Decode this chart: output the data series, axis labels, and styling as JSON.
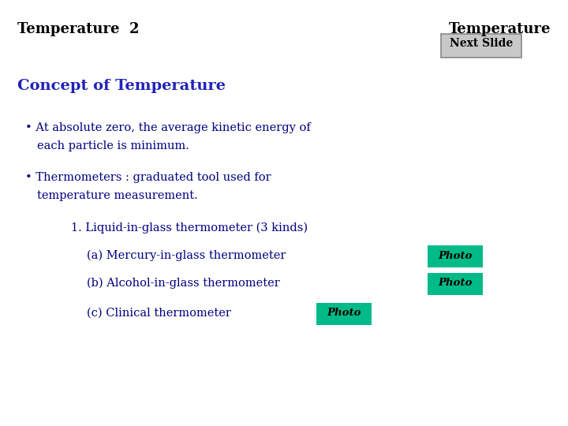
{
  "bg_color": "#ffffff",
  "title_left": "Temperature  2",
  "title_right": "Temperature",
  "title_color": "#000000",
  "title_fontsize": 13,
  "next_slide_text": "Next Slide",
  "next_slide_box_color": "#c8c8c8",
  "next_slide_border_color": "#888888",
  "next_slide_fontsize": 10,
  "section_title": "Concept of Temperature",
  "section_title_color": "#2222bb",
  "section_title_fontsize": 14,
  "body_color": "#000080",
  "body_fontsize": 10.5,
  "bullet1_line1": "• At absolute zero, the average kinetic energy of",
  "bullet1_line2": "each particle is minimum.",
  "bullet2_line1": "• Thermometers : graduated tool used for",
  "bullet2_line2": "temperature measurement.",
  "item1": "1. Liquid-in-glass thermometer (3 kinds)",
  "item_a": "(a) Mercury-in-glass thermometer",
  "item_b": "(b) Alcohol-in-glass thermometer",
  "item_c": "(c) Clinical thermometer",
  "photo_text": "Photo",
  "photo_bg": "#00bb88",
  "photo_text_color": "#000000",
  "photo_fontsize": 9.5
}
